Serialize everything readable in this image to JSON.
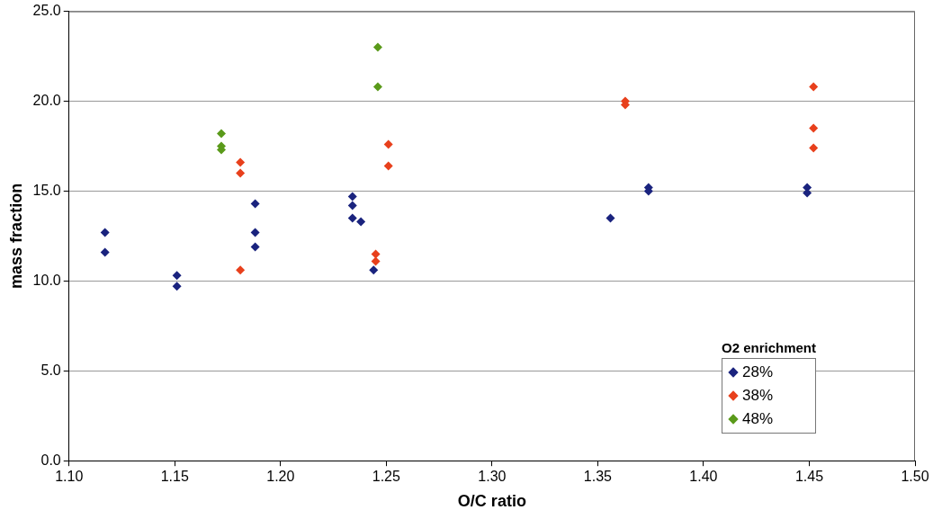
{
  "chart_data": {
    "type": "scatter",
    "xlabel": "O/C ratio",
    "ylabel": "mass fraction",
    "legend_title": "O2 enrichment",
    "xlim": [
      1.1,
      1.5
    ],
    "xticks": [
      {
        "value": 1.1,
        "label": "1.10"
      },
      {
        "value": 1.15,
        "label": "1.15"
      },
      {
        "value": 1.2,
        "label": "1.20"
      },
      {
        "value": 1.25,
        "label": "1.25"
      },
      {
        "value": 1.3,
        "label": "1.30"
      },
      {
        "value": 1.35,
        "label": "1.35"
      },
      {
        "value": 1.4,
        "label": "1.40"
      },
      {
        "value": 1.45,
        "label": "1.45"
      },
      {
        "value": 1.5,
        "label": "1.50"
      }
    ],
    "ylim": [
      0,
      25
    ],
    "yticks": [
      {
        "value": 0,
        "label": "0.0"
      },
      {
        "value": 5,
        "label": "5.0"
      },
      {
        "value": 10,
        "label": "10.0"
      },
      {
        "value": 15,
        "label": "15.0"
      },
      {
        "value": 20,
        "label": "20.0"
      },
      {
        "value": 25,
        "label": "25.0"
      }
    ],
    "grid": "y",
    "legend": "bottom right",
    "marker": "diamond",
    "series": [
      {
        "name": "28%",
        "color": "#1a237e",
        "x": [
          1.117,
          1.117,
          1.151,
          1.151,
          1.188,
          1.188,
          1.188,
          1.234,
          1.234,
          1.234,
          1.238,
          1.244,
          1.356,
          1.374,
          1.374,
          1.449,
          1.449
        ],
        "values": [
          12.7,
          11.6,
          10.3,
          9.7,
          14.3,
          12.7,
          11.9,
          14.7,
          14.2,
          13.5,
          13.3,
          10.6,
          13.5,
          15.2,
          15.0,
          15.2,
          14.9
        ]
      },
      {
        "name": "38%",
        "color": "#e8401c",
        "x": [
          1.181,
          1.181,
          1.181,
          1.245,
          1.245,
          1.251,
          1.251,
          1.363,
          1.363,
          1.452,
          1.452,
          1.452
        ],
        "values": [
          16.6,
          16.0,
          10.6,
          11.5,
          11.1,
          17.6,
          16.4,
          20.0,
          19.8,
          20.8,
          18.5,
          17.4
        ]
      },
      {
        "name": "48%",
        "color": "#5a9a1a",
        "x": [
          1.172,
          1.172,
          1.172,
          1.246,
          1.246
        ],
        "values": [
          18.2,
          17.5,
          17.3,
          23.0,
          20.8
        ]
      }
    ]
  }
}
